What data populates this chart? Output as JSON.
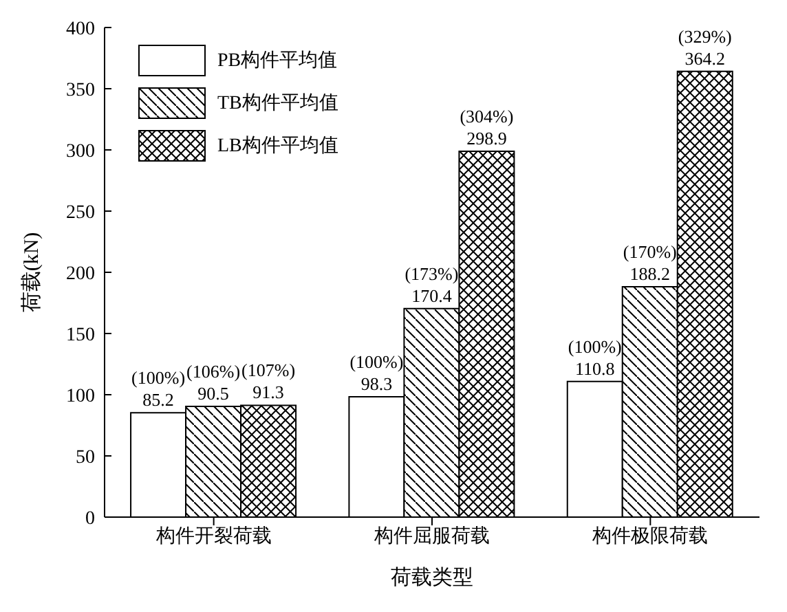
{
  "chart_data": {
    "type": "bar",
    "xlabel": "荷载类型",
    "ylabel": "荷载(kN)",
    "categories": [
      "构件开裂荷载",
      "构件屈服荷载",
      "构件极限荷载"
    ],
    "series": [
      {
        "name": "PB构件平均值",
        "color": "#ffffff",
        "values": [
          85.2,
          98.3,
          110.8
        ],
        "value_labels": [
          "(100%)\n85.2",
          "(100%)\n98.3",
          "(100%)\n110.8"
        ]
      },
      {
        "name": "TB构件平均值",
        "color": "#000000",
        "values": [
          90.5,
          170.4,
          188.2
        ],
        "value_labels": [
          "(106%)\n90.5",
          "(173%)\n170.4",
          "(170%)\n188.2"
        ]
      },
      {
        "name": "LB构件平均值",
        "color": "#000000",
        "values": [
          91.3,
          298.9,
          364.2
        ],
        "value_labels": [
          "(107%)\n91.3",
          "(304%)\n298.9",
          "(329%)\n364.2"
        ]
      }
    ],
    "ylim": [
      0,
      400
    ],
    "yticks": [
      0,
      50,
      100,
      150,
      200,
      250,
      300,
      350,
      400
    ],
    "grid": false,
    "legend": "top left"
  }
}
